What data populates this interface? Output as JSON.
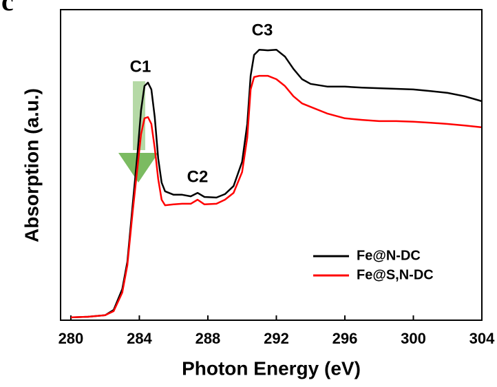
{
  "chart_data": {
    "type": "line",
    "panel_label": "c",
    "x_label": "Photon Energy (eV)",
    "y_label": "Absorption (a.u.)",
    "annotations": [
      "C1",
      "C2",
      "C3"
    ],
    "x": [
      280,
      281,
      282,
      282.5,
      283,
      283.3,
      283.6,
      283.9,
      284.1,
      284.3,
      284.5,
      284.7,
      284.9,
      285.1,
      285.3,
      285.5,
      286,
      286.5,
      287,
      287.4,
      287.8,
      288.5,
      289,
      289.5,
      290,
      290.3,
      290.5,
      290.7,
      291,
      291.5,
      292,
      292.5,
      293,
      293.5,
      294,
      295,
      296,
      297,
      298,
      299,
      300,
      301,
      302,
      303,
      304
    ],
    "series": [
      {
        "name": "Fe@N-DC",
        "color": "#000000",
        "values": [
          0.9,
          1.1,
          1.6,
          3.3,
          10.0,
          18.8,
          36.6,
          54.3,
          67.6,
          75.4,
          76.5,
          74.3,
          65.4,
          52.1,
          44.3,
          41.5,
          40.4,
          40.4,
          39.9,
          41.0,
          39.7,
          39.5,
          40.6,
          43.2,
          51.0,
          63.2,
          78.7,
          85.4,
          87.1,
          86.9,
          87.1,
          84.9,
          80.9,
          77.6,
          76.1,
          75.2,
          75.2,
          74.9,
          74.7,
          74.5,
          74.3,
          73.8,
          73.2,
          72.1,
          70.5
        ]
      },
      {
        "name": "Fe@S,N-DC",
        "color": "#ff0000",
        "values": [
          0.9,
          1.1,
          1.6,
          2.9,
          8.9,
          17.7,
          34.4,
          49.9,
          59.9,
          65.0,
          65.4,
          63.2,
          55.4,
          45.5,
          38.8,
          37.0,
          37.3,
          37.5,
          37.5,
          38.8,
          37.3,
          37.5,
          38.8,
          41.0,
          47.7,
          58.8,
          74.3,
          78.3,
          78.7,
          78.7,
          77.6,
          75.4,
          72.1,
          69.8,
          68.7,
          66.5,
          65.0,
          64.5,
          64.1,
          64.1,
          63.9,
          63.6,
          63.2,
          62.7,
          62.1
        ]
      }
    ],
    "xlim": [
      279.4,
      304
    ],
    "xticks": [
      280,
      284,
      288,
      292,
      296,
      300,
      304
    ],
    "ylim": [
      0,
      100
    ]
  }
}
